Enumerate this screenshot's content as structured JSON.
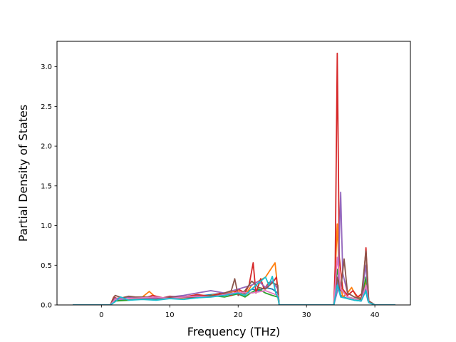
{
  "chart_data": {
    "type": "line",
    "title": "",
    "xlabel": "Frequency (THz)",
    "ylabel": "Partial Density of States",
    "xlim": [
      -6.5,
      45.2
    ],
    "ylim": [
      0.0,
      3.32
    ],
    "xticks": [
      0,
      10,
      20,
      30,
      40
    ],
    "yticks": [
      0.0,
      0.5,
      1.0,
      1.5,
      2.0,
      2.5,
      3.0
    ],
    "xtick_labels": [
      "0",
      "10",
      "20",
      "30",
      "40"
    ],
    "ytick_labels": [
      "0.0",
      "0.5",
      "1.0",
      "1.5",
      "2.0",
      "2.5",
      "3.0"
    ],
    "grid": false,
    "legend": "none",
    "series": [
      {
        "color": "#1f77b4",
        "points": [
          [
            -4.2,
            0
          ],
          [
            1.3,
            0
          ],
          [
            2,
            0.06
          ],
          [
            3,
            0.07
          ],
          [
            5,
            0.08
          ],
          [
            7,
            0.09
          ],
          [
            9,
            0.08
          ],
          [
            11,
            0.1
          ],
          [
            13,
            0.11
          ],
          [
            15,
            0.12
          ],
          [
            17,
            0.14
          ],
          [
            19,
            0.15
          ],
          [
            21,
            0.14
          ],
          [
            22,
            0.2
          ],
          [
            23,
            0.18
          ],
          [
            24,
            0.22
          ],
          [
            25,
            0.2
          ],
          [
            25.8,
            0.15
          ],
          [
            26,
            0
          ],
          [
            34,
            0
          ],
          [
            34.5,
            0.3
          ],
          [
            35,
            0.12
          ],
          [
            36,
            0.08
          ],
          [
            37,
            0.06
          ],
          [
            38,
            0.05
          ],
          [
            38.6,
            0.2
          ],
          [
            39,
            0.05
          ],
          [
            40,
            0
          ],
          [
            43,
            0
          ]
        ]
      },
      {
        "color": "#ff7f0e",
        "points": [
          [
            -4.2,
            0
          ],
          [
            1.3,
            0
          ],
          [
            2,
            0.08
          ],
          [
            3,
            0.09
          ],
          [
            4,
            0.07
          ],
          [
            6,
            0.1
          ],
          [
            7,
            0.17
          ],
          [
            8,
            0.09
          ],
          [
            10,
            0.08
          ],
          [
            12,
            0.09
          ],
          [
            14,
            0.1
          ],
          [
            16,
            0.12
          ],
          [
            18,
            0.15
          ],
          [
            20,
            0.18
          ],
          [
            21,
            0.12
          ],
          [
            22,
            0.25
          ],
          [
            23,
            0.3
          ],
          [
            24,
            0.35
          ],
          [
            25,
            0.48
          ],
          [
            25.4,
            0.53
          ],
          [
            25.8,
            0.2
          ],
          [
            26,
            0
          ],
          [
            34,
            0
          ],
          [
            34.5,
            1.02
          ],
          [
            34.8,
            0.35
          ],
          [
            35.3,
            0.1
          ],
          [
            36,
            0.15
          ],
          [
            36.6,
            0.22
          ],
          [
            37.2,
            0.12
          ],
          [
            38,
            0.08
          ],
          [
            38.7,
            0.3
          ],
          [
            39.1,
            0.05
          ],
          [
            40,
            0
          ],
          [
            43,
            0
          ]
        ]
      },
      {
        "color": "#2ca02c",
        "points": [
          [
            -4.2,
            0
          ],
          [
            1.3,
            0
          ],
          [
            2,
            0.05
          ],
          [
            4,
            0.06
          ],
          [
            6,
            0.08
          ],
          [
            8,
            0.07
          ],
          [
            10,
            0.09
          ],
          [
            12,
            0.1
          ],
          [
            14,
            0.09
          ],
          [
            16,
            0.12
          ],
          [
            18,
            0.1
          ],
          [
            20,
            0.14
          ],
          [
            21,
            0.1
          ],
          [
            22,
            0.16
          ],
          [
            23,
            0.2
          ],
          [
            24,
            0.15
          ],
          [
            25,
            0.12
          ],
          [
            25.8,
            0.1
          ],
          [
            26,
            0
          ],
          [
            34,
            0
          ],
          [
            34.5,
            0.45
          ],
          [
            35,
            0.2
          ],
          [
            36,
            0.1
          ],
          [
            37,
            0.08
          ],
          [
            38,
            0.06
          ],
          [
            38.7,
            0.35
          ],
          [
            39.1,
            0.05
          ],
          [
            40,
            0
          ],
          [
            43,
            0
          ]
        ]
      },
      {
        "color": "#d62728",
        "points": [
          [
            -4.2,
            0
          ],
          [
            1.3,
            0
          ],
          [
            1.8,
            0.1
          ],
          [
            2.5,
            0.07
          ],
          [
            3.5,
            0.1
          ],
          [
            5,
            0.09
          ],
          [
            6,
            0.08
          ],
          [
            7.5,
            0.12
          ],
          [
            9,
            0.09
          ],
          [
            10,
            0.11
          ],
          [
            12,
            0.1
          ],
          [
            14,
            0.13
          ],
          [
            16,
            0.11
          ],
          [
            17.5,
            0.15
          ],
          [
            19,
            0.12
          ],
          [
            20,
            0.2
          ],
          [
            21,
            0.15
          ],
          [
            21.6,
            0.25
          ],
          [
            22.2,
            0.53
          ],
          [
            22.6,
            0.15
          ],
          [
            23.3,
            0.33
          ],
          [
            23.8,
            0.2
          ],
          [
            24.5,
            0.28
          ],
          [
            25.2,
            0.3
          ],
          [
            25.6,
            0.35
          ],
          [
            25.9,
            0.1
          ],
          [
            26,
            0
          ],
          [
            34,
            0
          ],
          [
            34.2,
            0.5
          ],
          [
            34.5,
            3.17
          ],
          [
            34.8,
            0.6
          ],
          [
            35.3,
            0.2
          ],
          [
            36,
            0.12
          ],
          [
            36.8,
            0.18
          ],
          [
            37.5,
            0.1
          ],
          [
            38.2,
            0.15
          ],
          [
            38.7,
            0.72
          ],
          [
            39.1,
            0.05
          ],
          [
            40,
            0
          ],
          [
            43,
            0
          ]
        ]
      },
      {
        "color": "#9467bd",
        "points": [
          [
            -4.2,
            0
          ],
          [
            1.3,
            0
          ],
          [
            2,
            0.08
          ],
          [
            4,
            0.1
          ],
          [
            6,
            0.09
          ],
          [
            8,
            0.08
          ],
          [
            10,
            0.1
          ],
          [
            12,
            0.12
          ],
          [
            14,
            0.15
          ],
          [
            16,
            0.18
          ],
          [
            18,
            0.15
          ],
          [
            20,
            0.2
          ],
          [
            22,
            0.25
          ],
          [
            23,
            0.3
          ],
          [
            24,
            0.22
          ],
          [
            25,
            0.3
          ],
          [
            25.8,
            0.2
          ],
          [
            26,
            0
          ],
          [
            34,
            0
          ],
          [
            34.6,
            0.2
          ],
          [
            35,
            1.42
          ],
          [
            35.3,
            0.4
          ],
          [
            36,
            0.15
          ],
          [
            37,
            0.1
          ],
          [
            38,
            0.08
          ],
          [
            38.7,
            0.5
          ],
          [
            39.1,
            0.05
          ],
          [
            40,
            0
          ],
          [
            43,
            0
          ]
        ]
      },
      {
        "color": "#8c564b",
        "points": [
          [
            -4.2,
            0
          ],
          [
            1.3,
            0
          ],
          [
            2,
            0.12
          ],
          [
            3,
            0.09
          ],
          [
            4,
            0.11
          ],
          [
            5,
            0.1
          ],
          [
            7,
            0.1
          ],
          [
            9,
            0.09
          ],
          [
            11,
            0.1
          ],
          [
            13,
            0.09
          ],
          [
            15,
            0.11
          ],
          [
            17,
            0.12
          ],
          [
            19,
            0.18
          ],
          [
            19.5,
            0.33
          ],
          [
            20,
            0.12
          ],
          [
            21,
            0.18
          ],
          [
            22,
            0.3
          ],
          [
            23,
            0.22
          ],
          [
            24,
            0.2
          ],
          [
            25,
            0.28
          ],
          [
            25.8,
            0.25
          ],
          [
            26,
            0
          ],
          [
            34,
            0
          ],
          [
            34.5,
            0.35
          ],
          [
            35,
            0.18
          ],
          [
            35.5,
            0.58
          ],
          [
            36,
            0.15
          ],
          [
            37,
            0.1
          ],
          [
            38,
            0.08
          ],
          [
            38.7,
            0.68
          ],
          [
            39.1,
            0.05
          ],
          [
            40,
            0
          ],
          [
            43,
            0
          ]
        ]
      },
      {
        "color": "#e377c2",
        "points": [
          [
            -4.2,
            0
          ],
          [
            1.3,
            0
          ],
          [
            2,
            0.07
          ],
          [
            4,
            0.08
          ],
          [
            6,
            0.09
          ],
          [
            8,
            0.1
          ],
          [
            10,
            0.08
          ],
          [
            12,
            0.1
          ],
          [
            14,
            0.11
          ],
          [
            16,
            0.1
          ],
          [
            18,
            0.13
          ],
          [
            20,
            0.16
          ],
          [
            22,
            0.15
          ],
          [
            24,
            0.18
          ],
          [
            25.8,
            0.12
          ],
          [
            26,
            0
          ],
          [
            34,
            0
          ],
          [
            34.5,
            0.6
          ],
          [
            35,
            0.2
          ],
          [
            36,
            0.1
          ],
          [
            37,
            0.08
          ],
          [
            38,
            0.05
          ],
          [
            38.7,
            0.25
          ],
          [
            39.1,
            0.03
          ],
          [
            40,
            0
          ],
          [
            43,
            0
          ]
        ]
      },
      {
        "color": "#17becf",
        "points": [
          [
            -4.2,
            0
          ],
          [
            1.3,
            0
          ],
          [
            2,
            0.04
          ],
          [
            2.8,
            0.1
          ],
          [
            4,
            0.06
          ],
          [
            6,
            0.07
          ],
          [
            8,
            0.06
          ],
          [
            10,
            0.08
          ],
          [
            12,
            0.07
          ],
          [
            14,
            0.09
          ],
          [
            16,
            0.1
          ],
          [
            18,
            0.12
          ],
          [
            20,
            0.15
          ],
          [
            21,
            0.12
          ],
          [
            22,
            0.2
          ],
          [
            23,
            0.28
          ],
          [
            24,
            0.35
          ],
          [
            24.5,
            0.25
          ],
          [
            25,
            0.36
          ],
          [
            25.5,
            0.15
          ],
          [
            25.9,
            0.08
          ],
          [
            26,
            0
          ],
          [
            34,
            0
          ],
          [
            34.5,
            0.25
          ],
          [
            35,
            0.1
          ],
          [
            36,
            0.08
          ],
          [
            37,
            0.06
          ],
          [
            38,
            0.05
          ],
          [
            38.7,
            0.18
          ],
          [
            39.1,
            0.03
          ],
          [
            40,
            0
          ],
          [
            43,
            0
          ]
        ]
      }
    ]
  }
}
